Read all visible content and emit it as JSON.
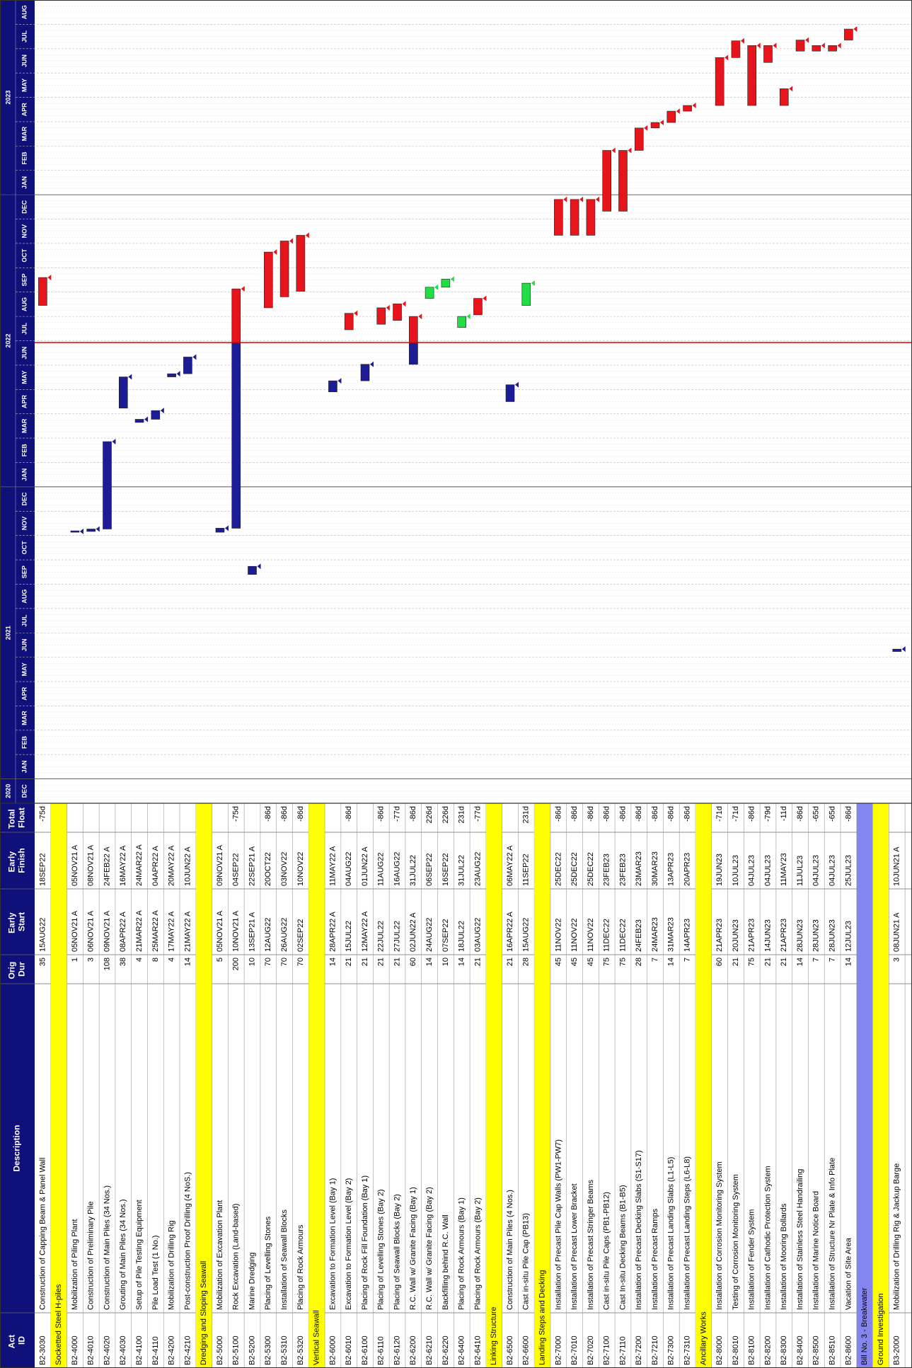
{
  "header": {
    "act_id": "Act ID",
    "description": "Description",
    "orig_dur": "Orig Dur",
    "early_start": "Early Start",
    "early_finish": "Early Finish",
    "total_float": "Total Float"
  },
  "timeline": {
    "years": [
      {
        "label": "2020",
        "months": [
          "DEC"
        ]
      },
      {
        "label": "2021",
        "months": [
          "JAN",
          "FEB",
          "MAR",
          "APR",
          "MAY",
          "JUN",
          "JUL",
          "AUG",
          "SEP",
          "OCT",
          "NOV",
          "DEC"
        ]
      },
      {
        "label": "2022",
        "months": [
          "JAN",
          "FEB",
          "MAR",
          "APR",
          "MAY",
          "JUN",
          "JUL",
          "AUG",
          "SEP",
          "OCT",
          "NOV",
          "DEC"
        ]
      },
      {
        "label": "2023",
        "months": [
          "JAN",
          "FEB",
          "MAR",
          "APR",
          "MAY",
          "JUN",
          "JUL",
          "AUG"
        ]
      }
    ]
  },
  "colors": {
    "actual": "#1c1c96",
    "header": "#10107a"
  },
  "rows": [
    {
      "id": "B2-3030",
      "description": "Construction of Capping Beam & Panel Wall",
      "orig_dur": 35,
      "early_start": "15AUG22",
      "early_finish": "18SEP22",
      "total_float": "-75d",
      "color": "#e8141b"
    },
    {
      "section": "Socketted Steel H-piles",
      "color": "#ffff00"
    },
    {
      "id": "B2-4000",
      "description": "Mobilization of Piling Plant",
      "orig_dur": 1,
      "early_start": "05NOV21 A",
      "early_finish": "05NOV21 A",
      "color": "#1c1c96"
    },
    {
      "id": "B2-4010",
      "description": "Construction of Preliminary Pile",
      "orig_dur": 3,
      "early_start": "06NOV21 A",
      "early_finish": "08NOV21 A",
      "color": "#1c1c96"
    },
    {
      "id": "B2-4020",
      "description": "Construction of Main Piles (34 Nos.)",
      "orig_dur": 108,
      "early_start": "09NOV21 A",
      "early_finish": "24FEB22 A",
      "color": "#1c1c96"
    },
    {
      "id": "B2-4030",
      "description": "Grouting of Main Piles (34 Nos.)",
      "orig_dur": 38,
      "early_start": "08APR22 A",
      "early_finish": "16MAY22 A",
      "color": "#1c1c96"
    },
    {
      "id": "B2-4100",
      "description": "Setup of Pile Testing Equipment",
      "orig_dur": 4,
      "early_start": "21MAR22 A",
      "early_finish": "24MAR22 A",
      "color": "#1c1c96"
    },
    {
      "id": "B2-4110",
      "description": "Pile Load Test (1 No.)",
      "orig_dur": 8,
      "early_start": "25MAR22 A",
      "early_finish": "04APR22 A",
      "color": "#1c1c96"
    },
    {
      "id": "B2-4200",
      "description": "Mobilization of Drilling Rig",
      "orig_dur": 4,
      "early_start": "17MAY22 A",
      "early_finish": "20MAY22 A",
      "color": "#1c1c96"
    },
    {
      "id": "B2-4210",
      "description": "Post-construction Proof Drilling (4 NoS.)",
      "orig_dur": 14,
      "early_start": "21MAY22 A",
      "early_finish": "10JUN22 A",
      "color": "#1c1c96"
    },
    {
      "section": "Dredging and Sloping Seawall",
      "color": "#ffff00"
    },
    {
      "id": "B2-5000",
      "description": "Mobilization of Excavation Plant",
      "orig_dur": 5,
      "early_start": "05NOV21 A",
      "early_finish": "09NOV21 A",
      "color": "#1c1c96"
    },
    {
      "id": "B2-5100",
      "description": "Rock Excavation (Land-based)",
      "orig_dur": 200,
      "early_start": "10NOV21 A",
      "early_finish": "04SEP22",
      "total_float": "-75d",
      "color": "#e8141b"
    },
    {
      "id": "B2-5200",
      "description": "Marine Dredging",
      "orig_dur": 10,
      "early_start": "13SEP21 A",
      "early_finish": "22SEP21 A",
      "color": "#1c1c96"
    },
    {
      "id": "B2-5300",
      "description": "Placing of Levelling Stones",
      "orig_dur": 70,
      "early_start": "12AUG22",
      "early_finish": "20OCT22",
      "total_float": "-86d",
      "color": "#e8141b"
    },
    {
      "id": "B2-5310",
      "description": "Installation of Seawall Blocks",
      "orig_dur": 70,
      "early_start": "26AUG22",
      "early_finish": "03NOV22",
      "total_float": "-86d",
      "color": "#e8141b"
    },
    {
      "id": "B2-5320",
      "description": "Placing of Rock Armours",
      "orig_dur": 70,
      "early_start": "02SEP22",
      "early_finish": "10NOV22",
      "total_float": "-86d",
      "color": "#e8141b"
    },
    {
      "section": "Vertical Seawall",
      "color": "#ffff00"
    },
    {
      "id": "B2-6000",
      "description": "Excavation to Formation Level (Bay 1)",
      "orig_dur": 14,
      "early_start": "28APR22 A",
      "early_finish": "11MAY22 A",
      "color": "#1c1c96"
    },
    {
      "id": "B2-6010",
      "description": "Excavation to Formation Level (Bay 2)",
      "orig_dur": 21,
      "early_start": "15JUL22",
      "early_finish": "04AUG22",
      "total_float": "-86d",
      "color": "#e8141b"
    },
    {
      "id": "B2-6100",
      "description": "Placing of Rock Fill Foundation (Bay 1)",
      "orig_dur": 21,
      "early_start": "12MAY22 A",
      "early_finish": "01JUN22 A",
      "color": "#1c1c96"
    },
    {
      "id": "B2-6110",
      "description": "Placing of Levelling Stones (Bay 2)",
      "orig_dur": 21,
      "early_start": "22JUL22",
      "early_finish": "11AUG22",
      "total_float": "-86d",
      "color": "#e8141b"
    },
    {
      "id": "B2-6120",
      "description": "Placing of Seawall Blocks (Bay 2)",
      "orig_dur": 21,
      "early_start": "27JUL22",
      "early_finish": "16AUG22",
      "total_float": "-77d",
      "color": "#e8141b"
    },
    {
      "id": "B2-6200",
      "description": "R.C. Wall w/ Granite Facing (Bay 1)",
      "orig_dur": 60,
      "early_start": "02JUN22 A",
      "early_finish": "31JUL22",
      "total_float": "-86d",
      "color": "#e8141b"
    },
    {
      "id": "B2-6210",
      "description": "R.C. Wall w/ Granite Facing (Bay 2)",
      "orig_dur": 14,
      "early_start": "24AUG22",
      "early_finish": "06SEP22",
      "total_float": "226d",
      "color": "#22dd44"
    },
    {
      "id": "B2-6220",
      "description": "Backfilling behind R.C. Wall",
      "orig_dur": 10,
      "early_start": "07SEP22",
      "early_finish": "16SEP22",
      "total_float": "226d",
      "color": "#22dd44"
    },
    {
      "id": "B2-6400",
      "description": "Placing of Rock Armours (Bay 1)",
      "orig_dur": 14,
      "early_start": "18JUL22",
      "early_finish": "31JUL22",
      "total_float": "231d",
      "color": "#22dd44"
    },
    {
      "id": "B2-6410",
      "description": "Placing of Rock Armours (Bay 2)",
      "orig_dur": 21,
      "early_start": "03AUG22",
      "early_finish": "23AUG22",
      "total_float": "-77d",
      "color": "#e8141b"
    },
    {
      "section": "Linking Structure",
      "color": "#ffff00"
    },
    {
      "id": "B2-6500",
      "description": "Construction of Main Piles (4 Nos.)",
      "orig_dur": 21,
      "early_start": "16APR22 A",
      "early_finish": "06MAY22 A",
      "color": "#1c1c96"
    },
    {
      "id": "B2-6600",
      "description": "Cast in-situ Pile Cap (PB13)",
      "orig_dur": 28,
      "early_start": "15AUG22",
      "early_finish": "11SEP22",
      "total_float": "231d",
      "color": "#22dd44"
    },
    {
      "section": "Landing Steps and Decking",
      "color": "#ffff00"
    },
    {
      "id": "B2-7000",
      "description": "Installation of Precast Pile Cap Walls (PW1-PW7)",
      "orig_dur": 45,
      "early_start": "11NOV22",
      "early_finish": "25DEC22",
      "total_float": "-86d",
      "color": "#e8141b"
    },
    {
      "id": "B2-7010",
      "description": "Installation of Precast Lower Bracket",
      "orig_dur": 45,
      "early_start": "11NOV22",
      "early_finish": "25DEC22",
      "total_float": "-86d",
      "color": "#e8141b"
    },
    {
      "id": "B2-7020",
      "description": "Installation of Precast Stringer Beams",
      "orig_dur": 45,
      "early_start": "11NOV22",
      "early_finish": "25DEC22",
      "total_float": "-86d",
      "color": "#e8141b"
    },
    {
      "id": "B2-7100",
      "description": "Cast in-situ Pile Caps (PB1-PB12)",
      "orig_dur": 75,
      "early_start": "11DEC22",
      "early_finish": "23FEB23",
      "total_float": "-86d",
      "color": "#e8141b"
    },
    {
      "id": "B2-7110",
      "description": "Cast In-situ Decking Beams (B1-B5)",
      "orig_dur": 75,
      "early_start": "11DEC22",
      "early_finish": "23FEB23",
      "total_float": "-86d",
      "color": "#e8141b"
    },
    {
      "id": "B2-7200",
      "description": "Installation of Precast Decking Slabs (S1-S17)",
      "orig_dur": 28,
      "early_start": "24FEB23",
      "early_finish": "23MAR23",
      "total_float": "-86d",
      "color": "#e8141b"
    },
    {
      "id": "B2-7210",
      "description": "Installation of Precast Ramps",
      "orig_dur": 7,
      "early_start": "24MAR23",
      "early_finish": "30MAR23",
      "total_float": "-86d",
      "color": "#e8141b"
    },
    {
      "id": "B2-7300",
      "description": "Installation of Precast Landing Slabs (L1-L5)",
      "orig_dur": 14,
      "early_start": "31MAR23",
      "early_finish": "13APR23",
      "total_float": "-86d",
      "color": "#e8141b"
    },
    {
      "id": "B2-7310",
      "description": "Installation of Precast Landing Steps (L6-L8)",
      "orig_dur": 7,
      "early_start": "14APR23",
      "early_finish": "20APR23",
      "total_float": "-86d",
      "color": "#e8141b"
    },
    {
      "section": "Ancillary Works",
      "color": "#ffff00"
    },
    {
      "id": "B2-8000",
      "description": "Installation of Corrosion Monitoring System",
      "orig_dur": 60,
      "early_start": "21APR23",
      "early_finish": "19JUN23",
      "total_float": "-71d",
      "color": "#e8141b"
    },
    {
      "id": "B2-8010",
      "description": "Testing of Corrosion Monitoring System",
      "orig_dur": 21,
      "early_start": "20JUN23",
      "early_finish": "10JUL23",
      "total_float": "-71d",
      "color": "#e8141b"
    },
    {
      "id": "B2-8100",
      "description": "Installation of Fender System",
      "orig_dur": 75,
      "early_start": "21APR23",
      "early_finish": "04JUL23",
      "total_float": "-86d",
      "color": "#e8141b"
    },
    {
      "id": "B2-8200",
      "description": "Installation of Cathodic Protection System",
      "orig_dur": 21,
      "early_start": "14JUN23",
      "early_finish": "04JUL23",
      "total_float": "-79d",
      "color": "#e8141b"
    },
    {
      "id": "B2-8300",
      "description": "Installation of Mooring Bollards",
      "orig_dur": 21,
      "early_start": "21APR23",
      "early_finish": "11MAY23",
      "total_float": "-11d",
      "color": "#e8141b"
    },
    {
      "id": "B2-8400",
      "description": "Installation of Stainless Steel Handrailing",
      "orig_dur": 14,
      "early_start": "28JUN23",
      "early_finish": "11JUL23",
      "total_float": "-86d",
      "color": "#e8141b"
    },
    {
      "id": "B2-8500",
      "description": "Installation of Marine Notice Board",
      "orig_dur": 7,
      "early_start": "28JUN23",
      "early_finish": "04JUL23",
      "total_float": "-65d",
      "color": "#e8141b"
    },
    {
      "id": "B2-8510",
      "description": "Installation of Structure Nr Plate & Info Plate",
      "orig_dur": 7,
      "early_start": "28JUN23",
      "early_finish": "04JUL23",
      "total_float": "-65d",
      "color": "#e8141b"
    },
    {
      "id": "B2-8600",
      "description": "Vacation of Site Area",
      "orig_dur": 14,
      "early_start": "12JUL23",
      "early_finish": "25JUL23",
      "total_float": "-86d",
      "color": "#e8141b"
    },
    {
      "section": "Bill No. 3 - Breakwater",
      "color": "#8585f0"
    },
    {
      "section": "Ground Investigation",
      "color": "#ffff00"
    },
    {
      "id": "B3-2000",
      "description": "Mobilization of Drilling Rig & Jackup Barge",
      "orig_dur": 3,
      "early_start": "08JUN21 A",
      "early_finish": "10JUN21 A",
      "color": "#1c1c96"
    }
  ]
}
